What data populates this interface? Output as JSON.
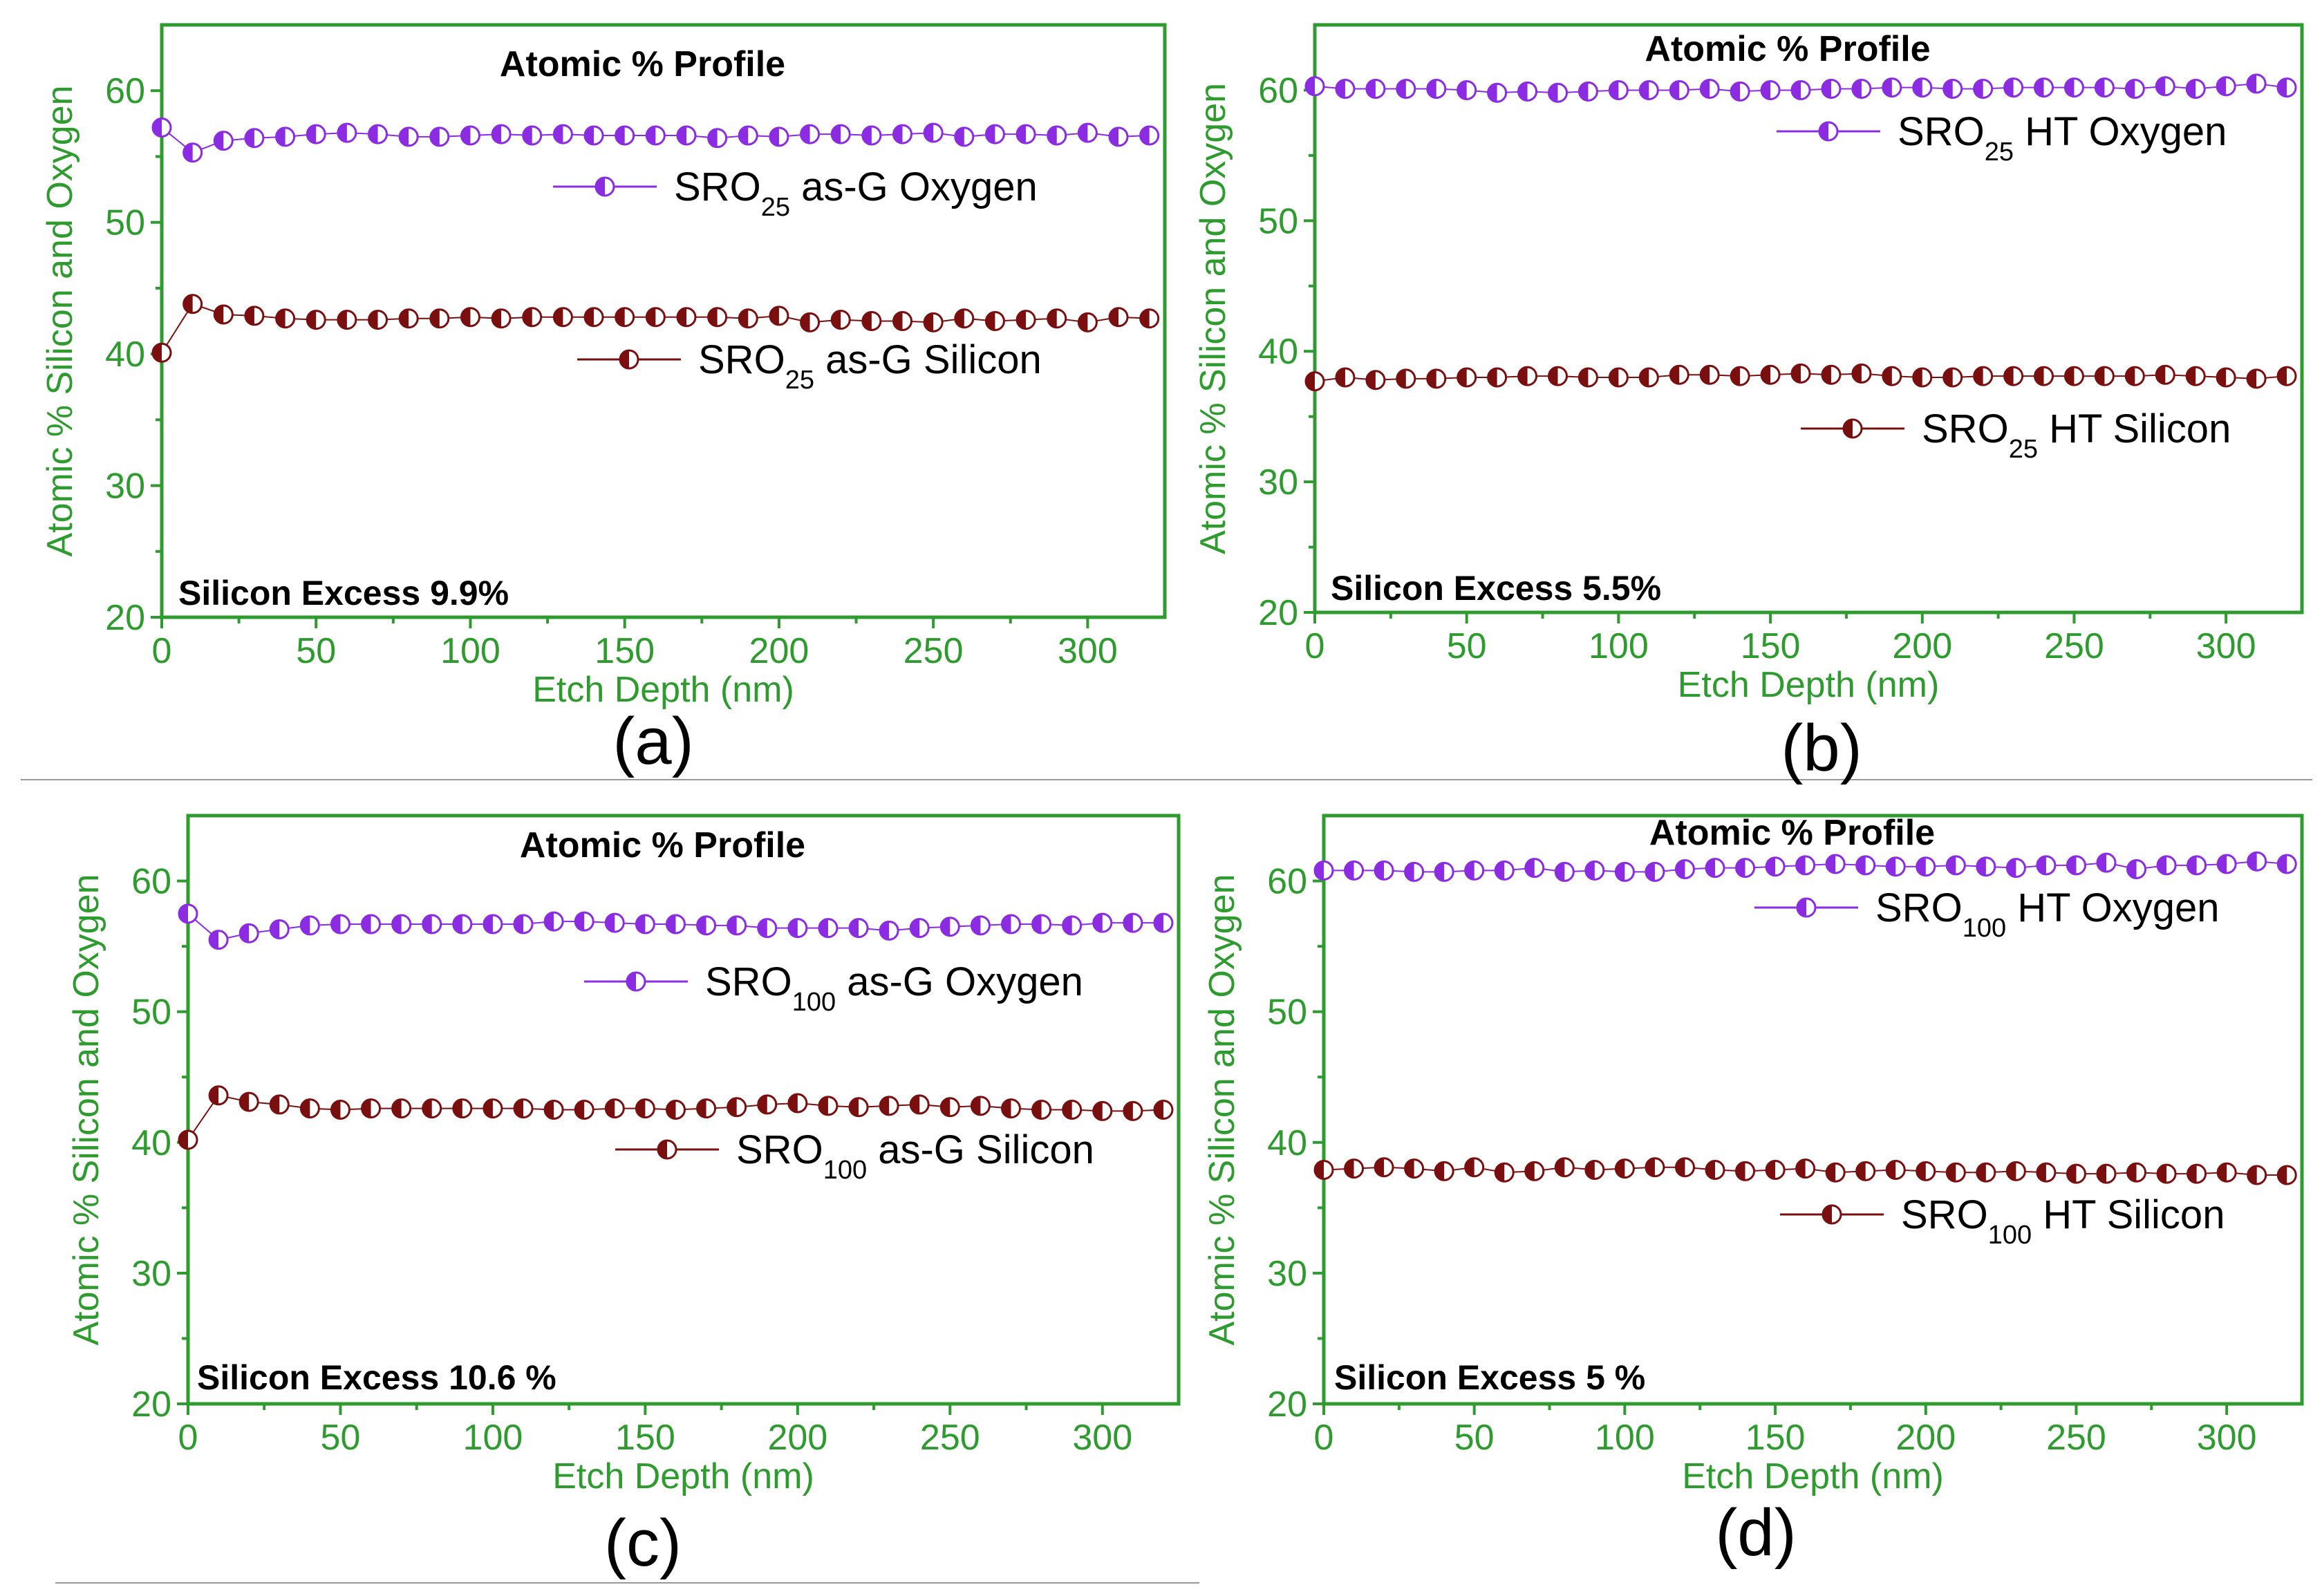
{
  "chart_data": [
    {
      "type": "scatter",
      "panel_label": "(a)",
      "title": "Atomic % Profile",
      "xlabel": "Etch Depth (nm)",
      "ylabel": "Atomic % Silicon and Oxygen",
      "xlim": [
        0,
        325
      ],
      "ylim": [
        20,
        65
      ],
      "xticks": [
        0,
        50,
        100,
        150,
        200,
        250,
        300
      ],
      "yticks": [
        20,
        30,
        40,
        50,
        60
      ],
      "annotation": "Silicon Excess 9.9%",
      "legend_position": "right",
      "x": [
        0,
        10,
        20,
        30,
        40,
        50,
        60,
        70,
        80,
        90,
        100,
        110,
        120,
        130,
        140,
        150,
        160,
        170,
        180,
        190,
        200,
        210,
        220,
        230,
        240,
        250,
        260,
        270,
        280,
        290,
        300,
        310,
        320
      ],
      "series": [
        {
          "name": "SRO25 as-G Oxygen",
          "legend": {
            "base": "SRO",
            "sub": "25",
            "rest": " as-G Oxygen"
          },
          "color": "#8b2be2",
          "values": [
            57.2,
            55.3,
            56.2,
            56.4,
            56.5,
            56.7,
            56.8,
            56.7,
            56.5,
            56.5,
            56.6,
            56.7,
            56.6,
            56.7,
            56.6,
            56.6,
            56.6,
            56.6,
            56.4,
            56.6,
            56.5,
            56.7,
            56.7,
            56.6,
            56.7,
            56.8,
            56.5,
            56.7,
            56.7,
            56.6,
            56.8,
            56.5,
            56.6
          ]
        },
        {
          "name": "SRO25 as-G Silicon",
          "legend": {
            "base": "SRO",
            "sub": "25",
            "rest": " as-G Silicon"
          },
          "color": "#7a0f0f",
          "values": [
            40.1,
            43.8,
            43.0,
            42.9,
            42.7,
            42.6,
            42.6,
            42.6,
            42.7,
            42.7,
            42.8,
            42.7,
            42.8,
            42.8,
            42.8,
            42.8,
            42.8,
            42.8,
            42.8,
            42.7,
            42.9,
            42.4,
            42.6,
            42.5,
            42.5,
            42.4,
            42.7,
            42.5,
            42.6,
            42.7,
            42.4,
            42.8,
            42.7
          ]
        }
      ]
    },
    {
      "type": "scatter",
      "panel_label": "(b)",
      "title": "Atomic % Profile",
      "xlabel": "Etch Depth (nm)",
      "ylabel": "Atomic % Silicon and Oxygen",
      "xlim": [
        0,
        325
      ],
      "ylim": [
        20,
        65
      ],
      "xticks": [
        0,
        50,
        100,
        150,
        200,
        250,
        300
      ],
      "yticks": [
        20,
        30,
        40,
        50,
        60
      ],
      "annotation": "Silicon Excess 5.5%",
      "legend_position": "right",
      "x": [
        0,
        10,
        20,
        30,
        40,
        50,
        60,
        70,
        80,
        90,
        100,
        110,
        120,
        130,
        140,
        150,
        160,
        170,
        180,
        190,
        200,
        210,
        220,
        230,
        240,
        250,
        260,
        270,
        280,
        290,
        300,
        310,
        320
      ],
      "series": [
        {
          "name": "SRO25 HT Oxygen",
          "legend": {
            "base": "SRO",
            "sub": "25",
            "rest": " HT Oxygen"
          },
          "color": "#8b2be2",
          "values": [
            60.3,
            60.1,
            60.1,
            60.1,
            60.1,
            60.0,
            59.8,
            59.9,
            59.8,
            59.9,
            60.0,
            60.0,
            60.0,
            60.1,
            59.9,
            60.0,
            60.0,
            60.1,
            60.1,
            60.2,
            60.2,
            60.1,
            60.1,
            60.2,
            60.2,
            60.2,
            60.2,
            60.1,
            60.3,
            60.1,
            60.3,
            60.5,
            60.2
          ]
        },
        {
          "name": "SRO25 HT Silicon",
          "legend": {
            "base": "SRO",
            "sub": "25",
            "rest": " HT Silicon"
          },
          "color": "#7a0f0f",
          "values": [
            37.7,
            38.0,
            37.8,
            37.9,
            37.9,
            38.0,
            38.0,
            38.1,
            38.1,
            38.0,
            38.0,
            38.0,
            38.2,
            38.2,
            38.1,
            38.2,
            38.3,
            38.2,
            38.3,
            38.1,
            38.0,
            38.0,
            38.1,
            38.1,
            38.1,
            38.1,
            38.1,
            38.1,
            38.2,
            38.1,
            38.0,
            37.9,
            38.1
          ]
        }
      ]
    },
    {
      "type": "scatter",
      "panel_label": "(c)",
      "title": "Atomic % Profile",
      "xlabel": "Etch Depth (nm)",
      "ylabel": "Atomic % Silicon and Oxygen",
      "xlim": [
        0,
        325
      ],
      "ylim": [
        20,
        65
      ],
      "xticks": [
        0,
        50,
        100,
        150,
        200,
        250,
        300
      ],
      "yticks": [
        20,
        30,
        40,
        50,
        60
      ],
      "annotation": "Silicon Excess 10.6 %",
      "legend_position": "right",
      "x": [
        0,
        10,
        20,
        30,
        40,
        50,
        60,
        70,
        80,
        90,
        100,
        110,
        120,
        130,
        140,
        150,
        160,
        170,
        180,
        190,
        200,
        210,
        220,
        230,
        240,
        250,
        260,
        270,
        280,
        290,
        300,
        310,
        320
      ],
      "series": [
        {
          "name": "SRO100 as-G Oxygen",
          "legend": {
            "base": "SRO",
            "sub": "100",
            "rest": " as-G Oxygen"
          },
          "color": "#8b2be2",
          "values": [
            57.5,
            55.5,
            56.0,
            56.3,
            56.6,
            56.7,
            56.7,
            56.7,
            56.7,
            56.7,
            56.7,
            56.7,
            56.9,
            56.9,
            56.8,
            56.7,
            56.7,
            56.6,
            56.6,
            56.4,
            56.4,
            56.4,
            56.4,
            56.2,
            56.4,
            56.5,
            56.6,
            56.7,
            56.7,
            56.6,
            56.8,
            56.8,
            56.8
          ]
        },
        {
          "name": "SRO100 as-G Silicon",
          "legend": {
            "base": "SRO",
            "sub": "100",
            "rest": " as-G Silicon"
          },
          "color": "#7a0f0f",
          "values": [
            40.2,
            43.6,
            43.1,
            42.9,
            42.6,
            42.5,
            42.6,
            42.6,
            42.6,
            42.6,
            42.6,
            42.6,
            42.5,
            42.5,
            42.6,
            42.6,
            42.5,
            42.6,
            42.7,
            42.9,
            43.0,
            42.8,
            42.7,
            42.8,
            42.9,
            42.7,
            42.8,
            42.6,
            42.5,
            42.5,
            42.4,
            42.4,
            42.5
          ]
        }
      ]
    },
    {
      "type": "scatter",
      "panel_label": "(d)",
      "title": "Atomic % Profile",
      "xlabel": "Etch Depth (nm)",
      "ylabel": "Atomic % Silicon and Oxygen",
      "xlim": [
        0,
        325
      ],
      "ylim": [
        20,
        65
      ],
      "xticks": [
        0,
        50,
        100,
        150,
        200,
        250,
        300
      ],
      "yticks": [
        20,
        30,
        40,
        50,
        60
      ],
      "annotation": "Silicon Excess 5 %",
      "legend_position": "right",
      "x": [
        0,
        10,
        20,
        30,
        40,
        50,
        60,
        70,
        80,
        90,
        100,
        110,
        120,
        130,
        140,
        150,
        160,
        170,
        180,
        190,
        200,
        210,
        220,
        230,
        240,
        250,
        260,
        270,
        280,
        290,
        300,
        310,
        320
      ],
      "series": [
        {
          "name": "SRO100 HT Oxygen",
          "legend": {
            "base": "SRO",
            "sub": "100",
            "rest": " HT Oxygen"
          },
          "color": "#8b2be2",
          "values": [
            60.8,
            60.8,
            60.8,
            60.7,
            60.7,
            60.8,
            60.8,
            61.0,
            60.7,
            60.8,
            60.7,
            60.7,
            60.9,
            61.0,
            61.0,
            61.1,
            61.2,
            61.3,
            61.2,
            61.1,
            61.1,
            61.2,
            61.1,
            61.0,
            61.2,
            61.2,
            61.4,
            60.9,
            61.2,
            61.2,
            61.3,
            61.5,
            61.3
          ]
        },
        {
          "name": "SRO100 HT Silicon",
          "legend": {
            "base": "SRO",
            "sub": "100",
            "rest": " HT Silicon"
          },
          "color": "#7a0f0f",
          "values": [
            37.9,
            38.0,
            38.1,
            38.0,
            37.8,
            38.1,
            37.7,
            37.8,
            38.1,
            37.9,
            38.0,
            38.1,
            38.1,
            37.9,
            37.8,
            37.9,
            38.0,
            37.7,
            37.8,
            37.9,
            37.8,
            37.7,
            37.7,
            37.8,
            37.7,
            37.6,
            37.6,
            37.7,
            37.6,
            37.6,
            37.7,
            37.5,
            37.5
          ]
        }
      ]
    }
  ]
}
